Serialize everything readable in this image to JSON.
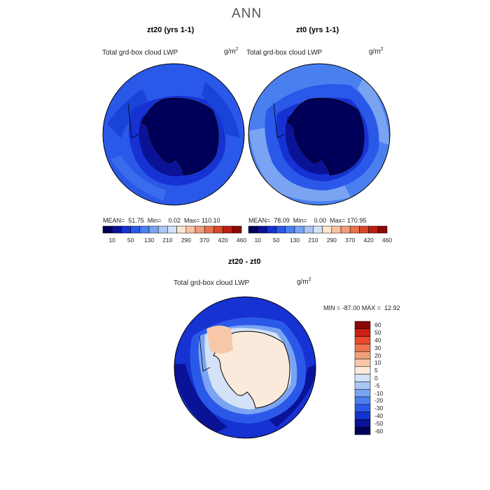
{
  "header": {
    "title": "ANN"
  },
  "panels": [
    {
      "title": "zt20 (yrs 1-1)",
      "variable": "Total grd-box cloud LWP",
      "unit_base": "g/m",
      "unit_exp": "2",
      "stats": "MEAN=  51.75  Min=    0.02  Max= 110.10"
    },
    {
      "title": "zt0 (yrs 1-1)",
      "variable": "Total grd-box cloud LWP",
      "unit_base": "g/m",
      "unit_exp": "2",
      "stats": "MEAN=  78.09  Min=    0.00  Max= 170.95"
    },
    {
      "title": "zt20 - zt0",
      "variable": "Total grd-box cloud LWP",
      "unit_base": "g/m",
      "unit_exp": "2",
      "stats": "MIN = -87.00 MAX =  12.92"
    }
  ],
  "colors": {
    "abs_scale": [
      "#00005a",
      "#0a1296",
      "#1632d2",
      "#2a58e8",
      "#4a7ff0",
      "#7aa4f2",
      "#a9c6f5",
      "#d3e2f7",
      "#fae6d2",
      "#f6c3a3",
      "#f09c78",
      "#e8724e",
      "#d9472b",
      "#bd1e14",
      "#8a0808"
    ],
    "diff_scale": [
      "#00005a",
      "#0a1296",
      "#1632d2",
      "#2a58e8",
      "#4a7ff0",
      "#7aa4f2",
      "#a9c6f5",
      "#d3e2f7",
      "#fbeadb",
      "#f6c8a9",
      "#f2a07c",
      "#ee7552",
      "#e84a2b",
      "#cc2010",
      "#8a0808"
    ]
  },
  "chart_data": [
    {
      "type": "heatmap",
      "title": "zt20 (yrs 1-1)",
      "variable": "Total grd-box cloud LWP",
      "units": "g/m^2",
      "projection": "south-polar-stereographic",
      "mean": 51.75,
      "min": 0.02,
      "max": 110.1,
      "contour_levels": [
        10,
        30,
        50,
        90,
        130,
        170,
        210,
        250,
        290,
        330,
        370,
        400,
        420,
        440,
        460
      ],
      "colorbar_labels": [
        "10",
        "50",
        "130",
        "210",
        "290",
        "370",
        "420",
        "460"
      ]
    },
    {
      "type": "heatmap",
      "title": "zt0 (yrs 1-1)",
      "variable": "Total grd-box cloud LWP",
      "units": "g/m^2",
      "projection": "south-polar-stereographic",
      "mean": 78.09,
      "min": 0.0,
      "max": 170.95,
      "contour_levels": [
        10,
        30,
        50,
        90,
        130,
        170,
        210,
        250,
        290,
        330,
        370,
        400,
        420,
        440,
        460
      ],
      "colorbar_labels": [
        "10",
        "50",
        "130",
        "210",
        "290",
        "370",
        "420",
        "460"
      ]
    },
    {
      "type": "heatmap",
      "title": "zt20 - zt0",
      "variable": "Total grd-box cloud LWP",
      "units": "g/m^2",
      "projection": "south-polar-stereographic",
      "min": -87.0,
      "max": 12.92,
      "colorbar_labels": [
        "60",
        "50",
        "40",
        "30",
        "20",
        "10",
        "5",
        "0",
        "-5",
        "-10",
        "-20",
        "-30",
        "-40",
        "-50",
        "-60"
      ]
    }
  ]
}
